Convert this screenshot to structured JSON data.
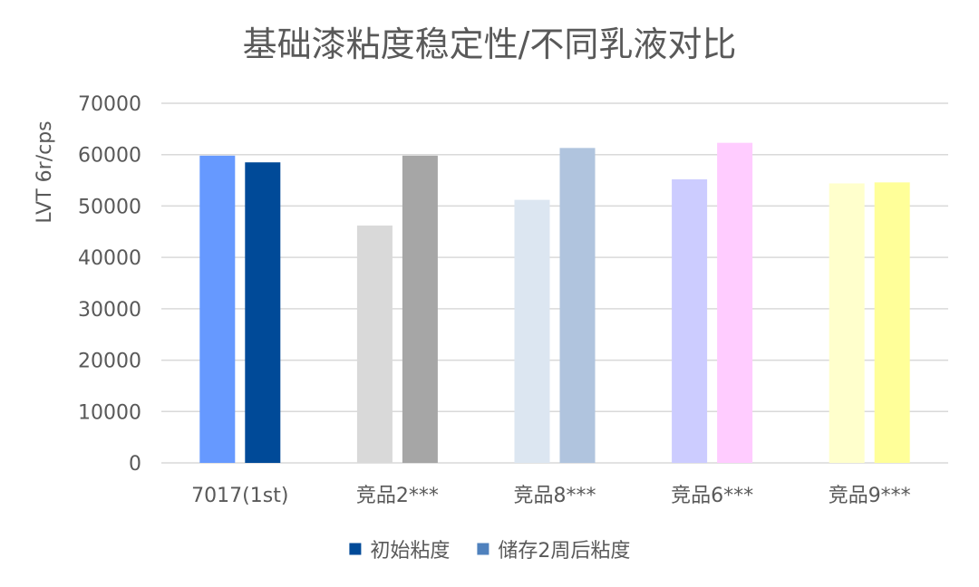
{
  "chart_data": {
    "type": "bar",
    "title": "基础漆粘度稳定性/不同乳液对比",
    "xlabel": "",
    "ylabel": "LVT 6r/cps",
    "ylim": [
      0,
      70000
    ],
    "yticks": [
      0,
      10000,
      20000,
      30000,
      40000,
      50000,
      60000,
      70000
    ],
    "grid": true,
    "legend_position": "bottom",
    "categories": [
      "7017(1st)",
      "竞品2***",
      "竞品8***",
      "竞品6***",
      "竞品9***"
    ],
    "series": [
      {
        "name": "初始粘度",
        "legend_color": "#004A98",
        "values": [
          59800,
          46200,
          51200,
          55200,
          54400
        ],
        "colors": [
          "#6699FF",
          "#D9D9D9",
          "#DCE6F1",
          "#CCCCFF",
          "#FFFFCC"
        ]
      },
      {
        "name": "储存2周后粘度",
        "legend_color": "#4F81BD",
        "values": [
          58500,
          59800,
          61300,
          62300,
          54600
        ],
        "colors": [
          "#004A98",
          "#A6A6A6",
          "#B0C4DE",
          "#FFCCFF",
          "#FFFF99"
        ]
      }
    ]
  }
}
